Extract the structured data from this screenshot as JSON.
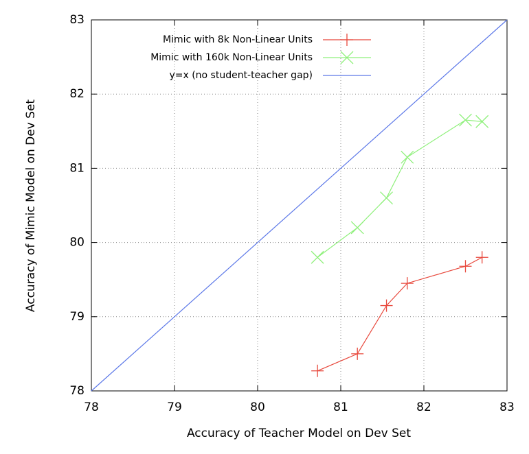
{
  "chart_data": {
    "type": "line",
    "xlabel": "Accuracy of Teacher Model on Dev Set",
    "ylabel": "Accuracy of Mimic Model on Dev Set",
    "xlim": [
      78,
      83
    ],
    "ylim": [
      78,
      83
    ],
    "xticks": [
      78,
      79,
      80,
      81,
      82,
      83
    ],
    "yticks": [
      78,
      79,
      80,
      81,
      82,
      83
    ],
    "grid": true,
    "legend": "upper left",
    "series": [
      {
        "name": "Mimic with 8k Non-Linear Units",
        "color": "#e8483c",
        "marker": "plus",
        "x": [
          80.72,
          81.2,
          81.55,
          81.8,
          82.5,
          82.7
        ],
        "values": [
          78.27,
          78.5,
          79.15,
          79.45,
          79.68,
          79.8
        ]
      },
      {
        "name": "Mimic with 160k Non-Linear Units",
        "color": "#8ef07a",
        "marker": "cross",
        "x": [
          80.72,
          81.2,
          81.55,
          81.8,
          82.5,
          82.7
        ],
        "values": [
          79.8,
          80.2,
          80.6,
          81.15,
          81.65,
          81.63
        ]
      },
      {
        "name": "y=x (no student-teacher gap)",
        "color": "#5c78e8",
        "x": [
          78,
          83
        ],
        "values": [
          78,
          83
        ]
      }
    ]
  }
}
